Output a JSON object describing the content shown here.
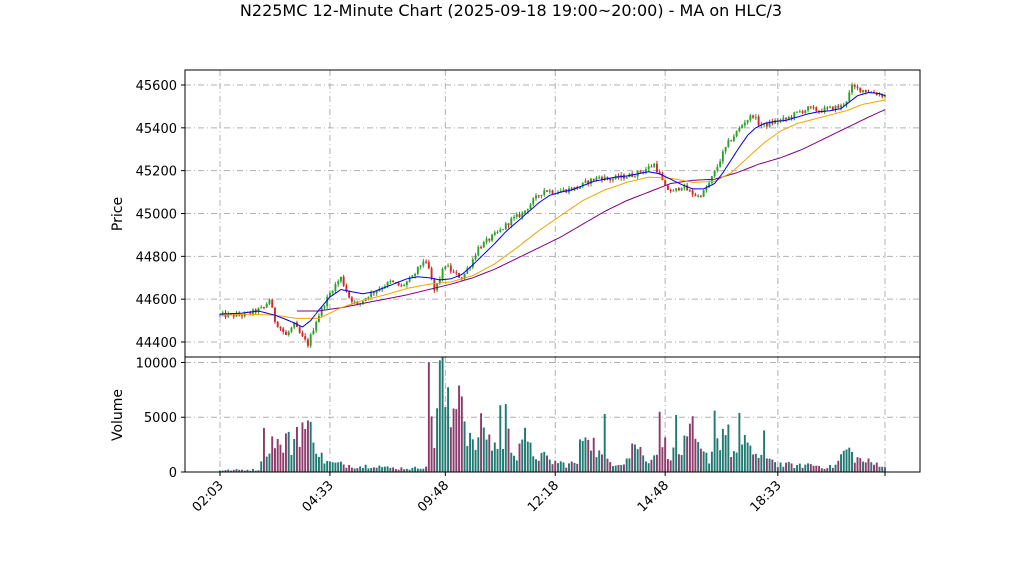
{
  "chart_data": {
    "type": "candlestick",
    "title": "N225MC 12-Minute Chart (2025-09-18 19:00~20:00) - MA on HLC/3",
    "price_panel": {
      "ylabel": "Price",
      "ylim": [
        44330,
        45670
      ],
      "yticks": [
        44400,
        44600,
        44800,
        45000,
        45200,
        45400,
        45600
      ],
      "grid": true
    },
    "volume_panel": {
      "ylabel": "Volume",
      "ylim": [
        0,
        10500
      ],
      "yticks": [
        0,
        5000,
        10000
      ],
      "grid": true
    },
    "xticks": [
      "02:03",
      "04:33",
      "09:48",
      "12:18",
      "14:48",
      "18:33"
    ],
    "colors": {
      "up": "#2ca02c",
      "down": "#d62728",
      "vol_up": "#1f7a72",
      "vol_down": "#8e3b6b",
      "ma_fast": "#0000ee",
      "ma_mid": "#f0a500",
      "ma_slow": "#800080",
      "grid": "#b0b0b0"
    },
    "price_path": [
      [
        0,
        44525
      ],
      [
        8,
        44525
      ],
      [
        12,
        44540
      ],
      [
        16,
        44560
      ],
      [
        18,
        44600
      ],
      [
        20,
        44500
      ],
      [
        24,
        44430
      ],
      [
        27,
        44480
      ],
      [
        30,
        44420
      ],
      [
        32,
        44390
      ],
      [
        35,
        44500
      ],
      [
        38,
        44580
      ],
      [
        41,
        44650
      ],
      [
        44,
        44700
      ],
      [
        47,
        44610
      ],
      [
        50,
        44570
      ],
      [
        54,
        44620
      ],
      [
        58,
        44650
      ],
      [
        62,
        44680
      ],
      [
        66,
        44660
      ],
      [
        70,
        44700
      ],
      [
        74,
        44780
      ],
      [
        76,
        44740
      ],
      [
        78,
        44640
      ],
      [
        80,
        44700
      ],
      [
        82,
        44760
      ],
      [
        85,
        44720
      ],
      [
        88,
        44700
      ],
      [
        91,
        44760
      ],
      [
        94,
        44840
      ],
      [
        98,
        44880
      ],
      [
        102,
        44920
      ],
      [
        106,
        44970
      ],
      [
        110,
        45000
      ],
      [
        114,
        45060
      ],
      [
        118,
        45110
      ],
      [
        122,
        45100
      ],
      [
        126,
        45110
      ],
      [
        130,
        45120
      ],
      [
        134,
        45150
      ],
      [
        138,
        45170
      ],
      [
        142,
        45160
      ],
      [
        146,
        45170
      ],
      [
        150,
        45180
      ],
      [
        154,
        45200
      ],
      [
        158,
        45230
      ],
      [
        160,
        45180
      ],
      [
        162,
        45120
      ],
      [
        165,
        45100
      ],
      [
        168,
        45130
      ],
      [
        171,
        45100
      ],
      [
        174,
        45080
      ],
      [
        176,
        45100
      ],
      [
        178,
        45140
      ],
      [
        181,
        45220
      ],
      [
        183,
        45280
      ],
      [
        185,
        45330
      ],
      [
        188,
        45380
      ],
      [
        191,
        45430
      ],
      [
        194,
        45460
      ],
      [
        196,
        45420
      ],
      [
        198,
        45410
      ],
      [
        202,
        45430
      ],
      [
        206,
        45440
      ],
      [
        210,
        45470
      ],
      [
        214,
        45490
      ],
      [
        218,
        45480
      ],
      [
        222,
        45490
      ],
      [
        226,
        45500
      ],
      [
        228,
        45530
      ],
      [
        230,
        45590
      ],
      [
        233,
        45580
      ],
      [
        236,
        45570
      ],
      [
        239,
        45560
      ],
      [
        242,
        45550
      ]
    ],
    "ma_fast": [
      [
        0,
        44530
      ],
      [
        8,
        44535
      ],
      [
        14,
        44545
      ],
      [
        20,
        44525
      ],
      [
        26,
        44495
      ],
      [
        30,
        44470
      ],
      [
        33,
        44500
      ],
      [
        36,
        44550
      ],
      [
        40,
        44610
      ],
      [
        44,
        44645
      ],
      [
        48,
        44635
      ],
      [
        52,
        44625
      ],
      [
        56,
        44635
      ],
      [
        60,
        44655
      ],
      [
        64,
        44675
      ],
      [
        68,
        44695
      ],
      [
        72,
        44705
      ],
      [
        76,
        44700
      ],
      [
        80,
        44690
      ],
      [
        84,
        44695
      ],
      [
        88,
        44715
      ],
      [
        92,
        44760
      ],
      [
        96,
        44810
      ],
      [
        100,
        44860
      ],
      [
        104,
        44915
      ],
      [
        108,
        44960
      ],
      [
        112,
        45005
      ],
      [
        116,
        45050
      ],
      [
        120,
        45085
      ],
      [
        124,
        45100
      ],
      [
        128,
        45110
      ],
      [
        132,
        45130
      ],
      [
        136,
        45150
      ],
      [
        140,
        45160
      ],
      [
        144,
        45170
      ],
      [
        148,
        45175
      ],
      [
        152,
        45185
      ],
      [
        156,
        45195
      ],
      [
        160,
        45185
      ],
      [
        164,
        45160
      ],
      [
        168,
        45135
      ],
      [
        172,
        45115
      ],
      [
        176,
        45115
      ],
      [
        180,
        45140
      ],
      [
        183,
        45190
      ],
      [
        186,
        45250
      ],
      [
        189,
        45310
      ],
      [
        192,
        45365
      ],
      [
        195,
        45400
      ],
      [
        198,
        45420
      ],
      [
        202,
        45430
      ],
      [
        206,
        45435
      ],
      [
        210,
        45450
      ],
      [
        214,
        45465
      ],
      [
        218,
        45475
      ],
      [
        222,
        45480
      ],
      [
        226,
        45490
      ],
      [
        229,
        45520
      ],
      [
        232,
        45550
      ],
      [
        236,
        45565
      ],
      [
        240,
        45560
      ],
      [
        242,
        45550
      ]
    ],
    "ma_mid": [
      [
        0,
        44525
      ],
      [
        10,
        44530
      ],
      [
        20,
        44525
      ],
      [
        28,
        44510
      ],
      [
        36,
        44510
      ],
      [
        44,
        44560
      ],
      [
        52,
        44595
      ],
      [
        60,
        44620
      ],
      [
        68,
        44650
      ],
      [
        76,
        44670
      ],
      [
        84,
        44680
      ],
      [
        92,
        44710
      ],
      [
        100,
        44765
      ],
      [
        108,
        44840
      ],
      [
        116,
        44920
      ],
      [
        124,
        44990
      ],
      [
        132,
        45060
      ],
      [
        140,
        45110
      ],
      [
        148,
        45145
      ],
      [
        156,
        45170
      ],
      [
        164,
        45165
      ],
      [
        172,
        45145
      ],
      [
        180,
        45150
      ],
      [
        186,
        45190
      ],
      [
        192,
        45260
      ],
      [
        198,
        45330
      ],
      [
        204,
        45385
      ],
      [
        210,
        45420
      ],
      [
        216,
        45440
      ],
      [
        222,
        45460
      ],
      [
        228,
        45480
      ],
      [
        234,
        45510
      ],
      [
        242,
        45530
      ]
    ],
    "ma_slow": [
      [
        28,
        44545
      ],
      [
        36,
        44545
      ],
      [
        44,
        44560
      ],
      [
        52,
        44580
      ],
      [
        60,
        44600
      ],
      [
        68,
        44620
      ],
      [
        76,
        44645
      ],
      [
        84,
        44670
      ],
      [
        92,
        44700
      ],
      [
        100,
        44740
      ],
      [
        108,
        44790
      ],
      [
        116,
        44840
      ],
      [
        124,
        44890
      ],
      [
        132,
        44950
      ],
      [
        140,
        45010
      ],
      [
        148,
        45060
      ],
      [
        156,
        45100
      ],
      [
        164,
        45140
      ],
      [
        172,
        45155
      ],
      [
        180,
        45160
      ],
      [
        188,
        45190
      ],
      [
        196,
        45230
      ],
      [
        204,
        45260
      ],
      [
        212,
        45300
      ],
      [
        220,
        45350
      ],
      [
        228,
        45400
      ],
      [
        236,
        45450
      ],
      [
        242,
        45485
      ]
    ],
    "volume_profile": [
      [
        0,
        150
      ],
      [
        8,
        200
      ],
      [
        14,
        200
      ],
      [
        16,
        3000
      ],
      [
        18,
        2000
      ],
      [
        20,
        3600
      ],
      [
        22,
        2000
      ],
      [
        24,
        3000
      ],
      [
        26,
        2400
      ],
      [
        28,
        3800
      ],
      [
        30,
        4200
      ],
      [
        32,
        3600
      ],
      [
        34,
        4000
      ],
      [
        36,
        1600
      ],
      [
        38,
        1100
      ],
      [
        40,
        800
      ],
      [
        44,
        700
      ],
      [
        48,
        600
      ],
      [
        52,
        500
      ],
      [
        56,
        700
      ],
      [
        60,
        400
      ],
      [
        64,
        350
      ],
      [
        68,
        350
      ],
      [
        70,
        300
      ],
      [
        72,
        400
      ],
      [
        75,
        600
      ],
      [
        76,
        7400
      ],
      [
        78,
        3000
      ],
      [
        80,
        9500
      ],
      [
        82,
        6500
      ],
      [
        84,
        4500
      ],
      [
        86,
        7200
      ],
      [
        88,
        5500
      ],
      [
        90,
        4000
      ],
      [
        92,
        2200
      ],
      [
        94,
        3000
      ],
      [
        96,
        4500
      ],
      [
        98,
        2800
      ],
      [
        100,
        2500
      ],
      [
        102,
        2200
      ],
      [
        104,
        3600
      ],
      [
        106,
        2400
      ],
      [
        108,
        1800
      ],
      [
        110,
        3600
      ],
      [
        112,
        2200
      ],
      [
        114,
        1700
      ],
      [
        116,
        1500
      ],
      [
        118,
        1300
      ],
      [
        120,
        1000
      ],
      [
        122,
        900
      ],
      [
        124,
        800
      ],
      [
        126,
        700
      ],
      [
        128,
        750
      ],
      [
        130,
        800
      ],
      [
        132,
        3500
      ],
      [
        134,
        4200
      ],
      [
        136,
        2500
      ],
      [
        138,
        1600
      ],
      [
        140,
        1200
      ],
      [
        142,
        1000
      ],
      [
        144,
        900
      ],
      [
        146,
        900
      ],
      [
        148,
        1200
      ],
      [
        150,
        1500
      ],
      [
        152,
        2600
      ],
      [
        154,
        1400
      ],
      [
        156,
        1300
      ],
      [
        158,
        1500
      ],
      [
        160,
        3600
      ],
      [
        162,
        2400
      ],
      [
        164,
        1800
      ],
      [
        166,
        1500
      ],
      [
        168,
        2000
      ],
      [
        170,
        2600
      ],
      [
        172,
        3600
      ],
      [
        174,
        2000
      ],
      [
        176,
        1500
      ],
      [
        178,
        1300
      ],
      [
        180,
        2400
      ],
      [
        182,
        3200
      ],
      [
        184,
        4200
      ],
      [
        186,
        2000
      ],
      [
        188,
        1600
      ],
      [
        190,
        1800
      ],
      [
        192,
        3200
      ],
      [
        194,
        1800
      ],
      [
        196,
        1200
      ],
      [
        198,
        1000
      ],
      [
        200,
        1700
      ],
      [
        202,
        800
      ],
      [
        204,
        700
      ],
      [
        206,
        600
      ],
      [
        208,
        700
      ],
      [
        210,
        500
      ],
      [
        212,
        600
      ],
      [
        214,
        700
      ],
      [
        216,
        650
      ],
      [
        218,
        550
      ],
      [
        220,
        500
      ],
      [
        222,
        450
      ],
      [
        224,
        600
      ],
      [
        226,
        1400
      ],
      [
        228,
        2100
      ],
      [
        230,
        1600
      ],
      [
        232,
        1200
      ],
      [
        234,
        1000
      ],
      [
        236,
        900
      ],
      [
        238,
        700
      ],
      [
        240,
        800
      ],
      [
        242,
        500
      ]
    ],
    "volume_spikes": [
      [
        80,
        10200
      ],
      [
        87,
        7900
      ],
      [
        88,
        6900
      ],
      [
        85,
        5800
      ],
      [
        102,
        6100
      ],
      [
        104,
        6200
      ],
      [
        140,
        5300
      ],
      [
        160,
        5500
      ],
      [
        166,
        5200
      ],
      [
        180,
        5600
      ],
      [
        189,
        5400
      ],
      [
        198,
        3800
      ],
      [
        150,
        2600
      ]
    ]
  }
}
